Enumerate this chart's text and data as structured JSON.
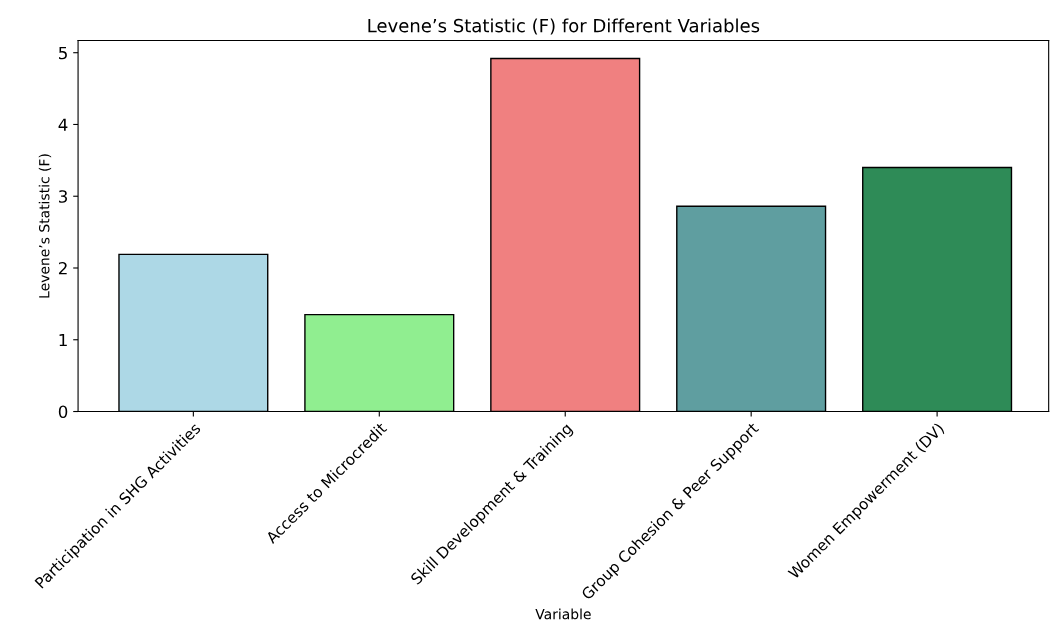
{
  "chart_data": {
    "type": "bar",
    "title": "Levene’s Statistic (F) for Different Variables",
    "xlabel": "Variable",
    "ylabel": "Levene’s Statistic (F)",
    "categories": [
      "Participation in SHG Activities",
      "Access to Microcredit",
      "Skill Development & Training",
      "Group Cohesion & Peer Support",
      "Women Empowerment (DV)"
    ],
    "values": [
      2.19,
      1.35,
      4.92,
      2.86,
      3.4
    ],
    "colors": [
      "#add8e6",
      "#90ee90",
      "#f08080",
      "#5f9ea0",
      "#2e8b57"
    ],
    "ylim": [
      0,
      5.17
    ],
    "yticks": [
      0,
      1,
      2,
      3,
      4,
      5
    ],
    "grid": false,
    "legend": false
  }
}
